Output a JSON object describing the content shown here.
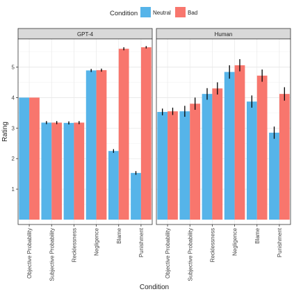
{
  "chart_data": {
    "type": "bar",
    "xlabel": "Condition",
    "ylabel": "Rating",
    "ylim": [
      0,
      5.9
    ],
    "yticks": [
      1,
      2,
      3,
      4,
      5
    ],
    "grid": true,
    "legend": {
      "title": "Condition",
      "position": "top",
      "entries": [
        "Neutral",
        "Bad"
      ]
    },
    "colors": {
      "Neutral": "#56B4E9",
      "Bad": "#F8766D"
    },
    "categories": [
      "Objective Probability",
      "Subjective Probability",
      "Recklessness",
      "Negligence",
      "Blame",
      "Punishment"
    ],
    "facets": [
      {
        "name": "GPT-4",
        "series": [
          {
            "name": "Neutral",
            "values": [
              4.0,
              3.18,
              3.17,
              4.89,
              2.25,
              1.53
            ],
            "errors": [
              0.0,
              0.05,
              0.05,
              0.05,
              0.06,
              0.06
            ]
          },
          {
            "name": "Bad",
            "values": [
              4.0,
              3.18,
              3.18,
              4.9,
              5.6,
              5.65
            ],
            "errors": [
              0.0,
              0.05,
              0.05,
              0.05,
              0.05,
              0.04
            ]
          }
        ]
      },
      {
        "name": "Human",
        "series": [
          {
            "name": "Neutral",
            "values": [
              3.53,
              3.55,
              4.12,
              4.84,
              3.87,
              2.85
            ],
            "errors": [
              0.11,
              0.18,
              0.19,
              0.22,
              0.2,
              0.2
            ]
          },
          {
            "name": "Bad",
            "values": [
              3.55,
              3.8,
              4.3,
              5.06,
              4.72,
              4.12
            ],
            "errors": [
              0.12,
              0.2,
              0.2,
              0.2,
              0.2,
              0.22
            ]
          }
        ]
      }
    ]
  }
}
